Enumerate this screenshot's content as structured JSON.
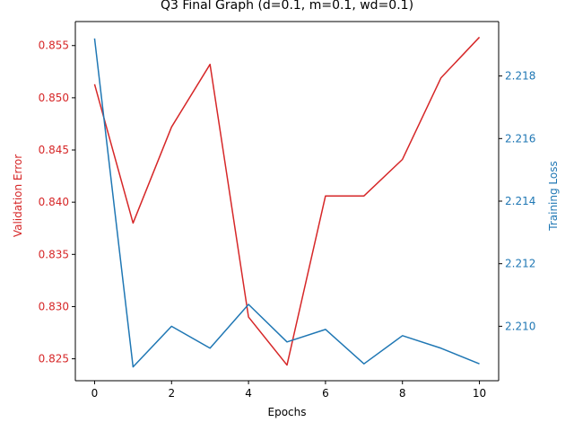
{
  "chart_data": {
    "type": "line",
    "title": "Q3 Final Graph (d=0.1, m=0.1, wd=0.1)",
    "xlabel": "Epochs",
    "x": [
      0,
      1,
      2,
      3,
      4,
      5,
      6,
      7,
      8,
      9,
      10
    ],
    "xlim": [
      -0.5,
      10.5
    ],
    "xticks": [
      "0",
      "2",
      "4",
      "6",
      "8",
      "10"
    ],
    "grid": false,
    "series": [
      {
        "axis": "left",
        "color": "#d62728",
        "values": [
          0.8513,
          0.838,
          0.8472,
          0.8532,
          0.829,
          0.8244,
          0.8406,
          0.8406,
          0.8441,
          0.8519,
          0.8558
        ]
      },
      {
        "axis": "right",
        "color": "#1f77b4",
        "values": [
          2.2192,
          2.2087,
          2.21,
          2.2093,
          2.2107,
          2.2095,
          2.2099,
          2.2088,
          2.2097,
          2.2093,
          2.2088
        ]
      }
    ],
    "y_left": {
      "label": "Validation Error",
      "color": "#d62728",
      "lim": [
        0.8229,
        0.8573
      ],
      "ticks": [
        "0.825",
        "0.830",
        "0.835",
        "0.840",
        "0.845",
        "0.850",
        "0.855"
      ]
    },
    "y_right": {
      "label": "Training Loss",
      "color": "#1f77b4",
      "lim": [
        2.20826,
        2.21974
      ],
      "ticks": [
        "2.210",
        "2.212",
        "2.214",
        "2.216",
        "2.218"
      ]
    }
  }
}
